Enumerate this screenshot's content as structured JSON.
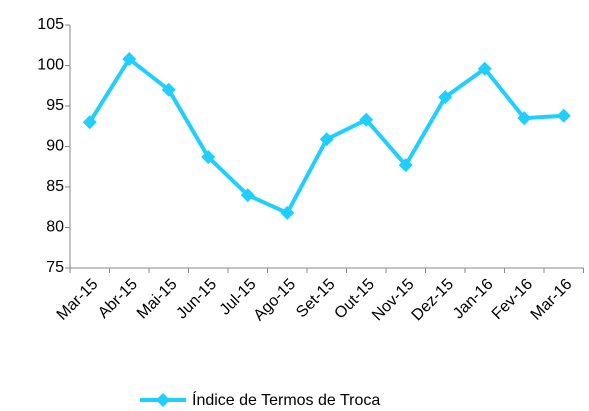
{
  "chart_data": {
    "type": "line",
    "categories": [
      "Mar-15",
      "Abr-15",
      "Mai-15",
      "Jun-15",
      "Jul-15",
      "Ago-15",
      "Set-15",
      "Out-15",
      "Nov-15",
      "Dez-15",
      "Jan-16",
      "Fev-16",
      "Mar-16"
    ],
    "series": [
      {
        "name": "Índice de Termos de Troca",
        "color": "#1ecfff",
        "values": [
          93.0,
          100.8,
          97.0,
          88.7,
          84.0,
          81.8,
          90.9,
          93.3,
          87.7,
          96.1,
          99.6,
          93.5,
          93.8
        ]
      }
    ],
    "ylim": [
      75,
      105
    ],
    "yticks": [
      75,
      80,
      85,
      90,
      95,
      100,
      105
    ],
    "legend": "bottom"
  }
}
